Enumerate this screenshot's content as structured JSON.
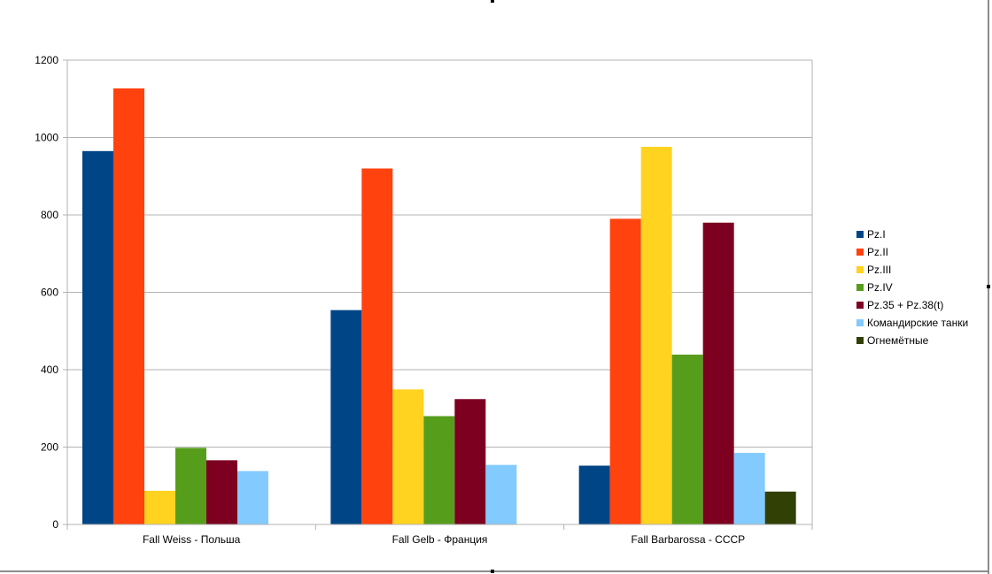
{
  "chart_data": {
    "type": "bar",
    "title": "",
    "xlabel": "",
    "ylabel": "",
    "ylim": [
      0,
      1200
    ],
    "yticks": [
      0,
      200,
      400,
      600,
      800,
      1000,
      1200
    ],
    "grid": true,
    "legend_position": "right",
    "categories": [
      "Fall Weiss - Польша",
      "Fall Gelb - Франция",
      "Fall Barbarossa - СССР"
    ],
    "series": [
      {
        "name": "Pz.I",
        "color": "#004586",
        "values": [
          965,
          554,
          152
        ]
      },
      {
        "name": "Pz.II",
        "color": "#ff420e",
        "values": [
          1127,
          920,
          790
        ]
      },
      {
        "name": "Pz.III",
        "color": "#ffd320",
        "values": [
          87,
          349,
          976
        ]
      },
      {
        "name": "Pz.IV",
        "color": "#579d1c",
        "values": [
          198,
          280,
          439
        ]
      },
      {
        "name": "Pz.35 + Pz.38(t)",
        "color": "#7e0021",
        "values": [
          166,
          324,
          780
        ]
      },
      {
        "name": "Командирские танки",
        "color": "#83caff",
        "values": [
          138,
          154,
          185
        ]
      },
      {
        "name": "Огнемётные",
        "color": "#314004",
        "values": [
          null,
          null,
          85
        ]
      }
    ]
  }
}
